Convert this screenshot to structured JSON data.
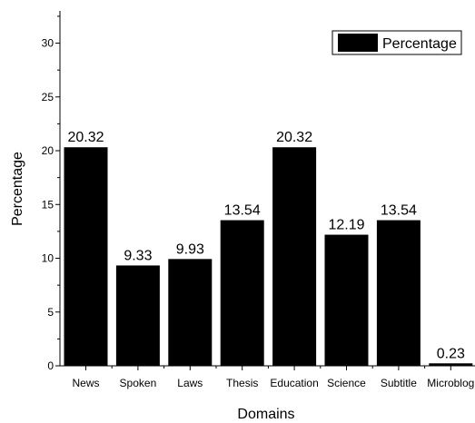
{
  "chart_data": {
    "type": "bar",
    "xlabel": "Domains",
    "ylabel": "Percentage",
    "ylim": [
      0,
      33
    ],
    "yticks": [
      0,
      5,
      10,
      15,
      20,
      25,
      30
    ],
    "categories": [
      "News",
      "Spoken",
      "Laws",
      "Thesis",
      "Education",
      "Science",
      "Subtitle",
      "Microblog"
    ],
    "series": [
      {
        "name": "Percentage",
        "values": [
          20.32,
          9.33,
          9.93,
          13.54,
          20.32,
          12.19,
          13.54,
          0.23
        ],
        "labels": [
          "20.32",
          "9.33",
          "9.93",
          "13.54",
          "20.32",
          "12.19",
          "13.54",
          "0.23"
        ]
      }
    ],
    "legend_position": "top-right",
    "bar_color": "#000000",
    "grid": false
  }
}
